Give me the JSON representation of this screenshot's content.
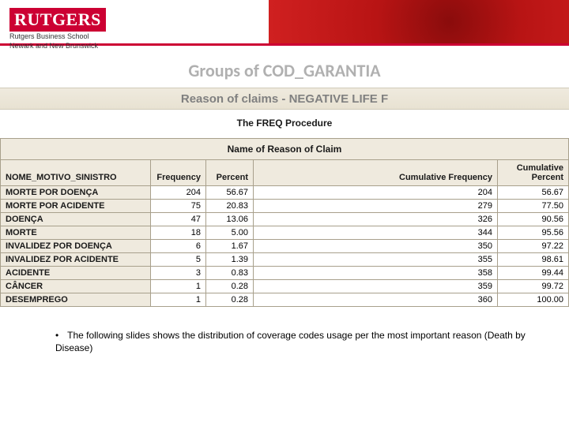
{
  "header": {
    "logo_text": "RUTGERS",
    "logo_sub1": "Rutgers Business School",
    "logo_sub2": "Newark and New Brunswick"
  },
  "title": "Groups of COD_GARANTIA",
  "subtitle": "Reason of claims - NEGATIVE LIFE F",
  "proc_label": "The FREQ Procedure",
  "table": {
    "super_header": "Name of Reason of Claim",
    "columns": {
      "label": "NOME_MOTIVO_SINISTRO",
      "freq": "Frequency",
      "pct": "Percent",
      "cfreq": "Cumulative Frequency",
      "cpct": "Cumulative Percent"
    },
    "rows": [
      {
        "label": "MORTE POR DOENÇA",
        "freq": "204",
        "pct": "56.67",
        "cfreq": "204",
        "cpct": "56.67"
      },
      {
        "label": "MORTE POR ACIDENTE",
        "freq": "75",
        "pct": "20.83",
        "cfreq": "279",
        "cpct": "77.50"
      },
      {
        "label": "DOENÇA",
        "freq": "47",
        "pct": "13.06",
        "cfreq": "326",
        "cpct": "90.56"
      },
      {
        "label": "MORTE",
        "freq": "18",
        "pct": "5.00",
        "cfreq": "344",
        "cpct": "95.56"
      },
      {
        "label": "INVALIDEZ POR DOENÇA",
        "freq": "6",
        "pct": "1.67",
        "cfreq": "350",
        "cpct": "97.22"
      },
      {
        "label": "INVALIDEZ POR ACIDENTE",
        "freq": "5",
        "pct": "1.39",
        "cfreq": "355",
        "cpct": "98.61"
      },
      {
        "label": "ACIDENTE",
        "freq": "3",
        "pct": "0.83",
        "cfreq": "358",
        "cpct": "99.44"
      },
      {
        "label": "CÂNCER",
        "freq": "1",
        "pct": "0.28",
        "cfreq": "359",
        "cpct": "99.72"
      },
      {
        "label": "DESEMPREGO",
        "freq": "1",
        "pct": "0.28",
        "cfreq": "360",
        "cpct": "100.00"
      }
    ]
  },
  "bullet_text": "The following slides shows the distribution of coverage codes usage per the most important reason (Death by Disease)"
}
